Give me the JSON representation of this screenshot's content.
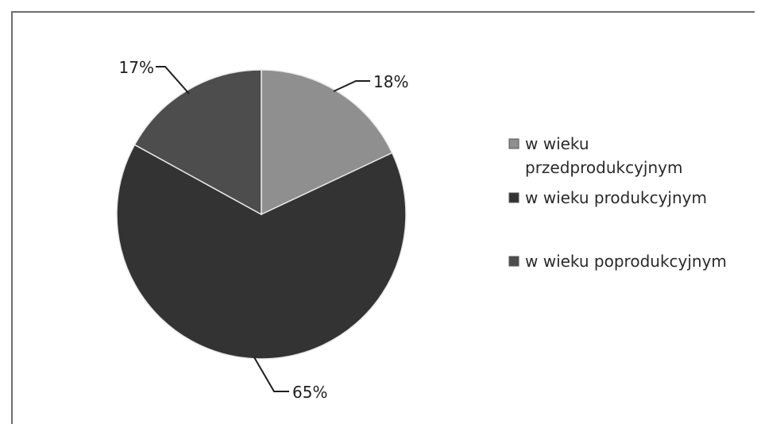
{
  "chart_data": {
    "type": "pie",
    "categories": [
      "w wieku przedprodukcyjnym",
      "w wieku produkcyjnym",
      "w wieku poprodukcyjnym"
    ],
    "values": [
      18,
      65,
      17
    ],
    "data_labels": [
      "18%",
      "65%",
      "17%"
    ],
    "colors": [
      "#8f8f8f",
      "#333333",
      "#4d4d4d"
    ],
    "legend": {
      "position": "right",
      "entries": [
        {
          "lines": [
            "w wieku",
            "przedprodukcyjnym"
          ]
        },
        {
          "lines": [
            "w wieku produkcyjnym"
          ]
        },
        {
          "lines": [
            "w wieku poprodukcyjnym"
          ]
        }
      ]
    },
    "title": "",
    "start_angle": "12 o'clock",
    "direction": "clockwise"
  }
}
